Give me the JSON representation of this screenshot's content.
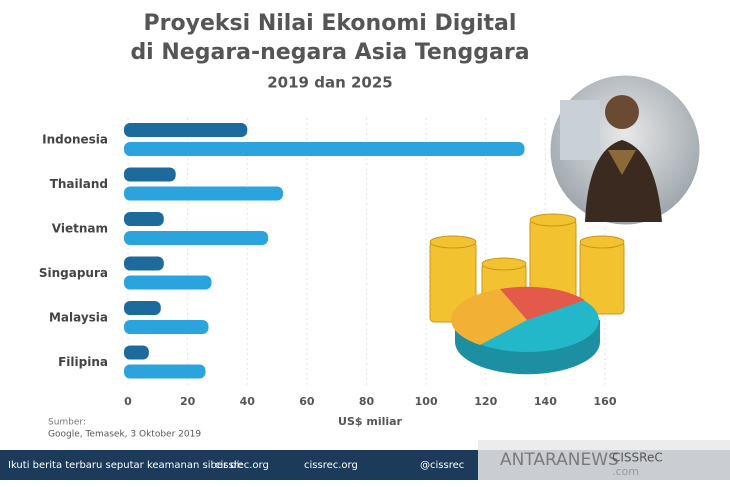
{
  "chart_data": {
    "type": "bar",
    "orientation": "horizontal",
    "title": "Proyeksi Nilai Ekonomi Digital",
    "title_line2": "di Negara-negara Asia Tenggara",
    "subtitle": "2019 dan 2025",
    "categories": [
      "Indonesia",
      "Thailand",
      "Vietnam",
      "Singapura",
      "Malaysia",
      "Filipina"
    ],
    "series": [
      {
        "color": "#1d6a9c",
        "values": [
          40,
          16,
          12,
          12,
          11,
          7
        ]
      },
      {
        "color": "#2ba3dc",
        "values": [
          133,
          52,
          47,
          28,
          27,
          26
        ]
      }
    ],
    "xlim": [
      0,
      160
    ],
    "xticks": [
      0,
      20,
      40,
      60,
      80,
      100,
      120,
      140,
      160
    ],
    "grid": true,
    "xlabel": "US$ miliar",
    "source_label": "Sumber:",
    "source": "Google, Temasek, 3 Oktober 2019"
  },
  "footer": {
    "prompt": "Ikuti berita terbaru seputar keamanan siber di:",
    "web": "cissrec.org",
    "facebook": "cissrec.org",
    "social": "@cissrec",
    "watermark": "ANTARANEWS",
    "watermark_domain": ".com",
    "logo": "CISSReC"
  }
}
